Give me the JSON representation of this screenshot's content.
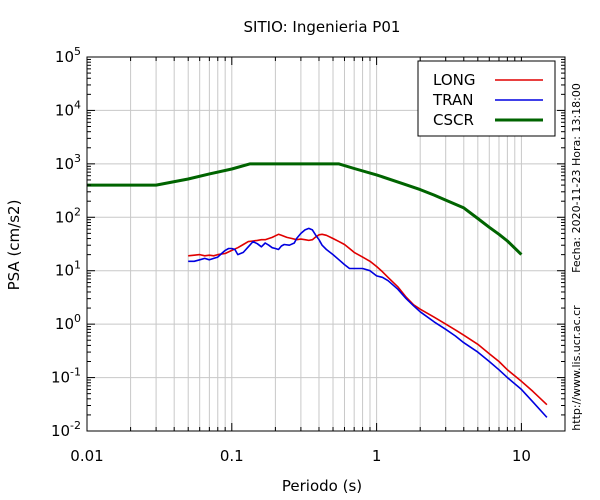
{
  "chart_data": {
    "type": "line",
    "title": "SITIO: Ingenieria P01",
    "xlabel": "Periodo (s)",
    "ylabel": "PSA (cm/s2)",
    "x_scale": "log",
    "y_scale": "log",
    "xlim": [
      0.01,
      20
    ],
    "ylim": [
      0.01,
      100000
    ],
    "grid": true,
    "legend_position": "top-right",
    "x_ticks": [
      {
        "value": 0.01,
        "label": "0.01"
      },
      {
        "value": 0.1,
        "label": "0.1"
      },
      {
        "value": 1,
        "label": "1"
      },
      {
        "value": 10,
        "label": "10"
      }
    ],
    "y_ticks": [
      {
        "value": 0.01,
        "base": "10",
        "exp": "-2"
      },
      {
        "value": 0.1,
        "base": "10",
        "exp": "-1"
      },
      {
        "value": 1,
        "base": "10",
        "exp": "0"
      },
      {
        "value": 10,
        "base": "10",
        "exp": "1"
      },
      {
        "value": 100,
        "base": "10",
        "exp": "2"
      },
      {
        "value": 1000,
        "base": "10",
        "exp": "3"
      },
      {
        "value": 10000,
        "base": "10",
        "exp": "4"
      },
      {
        "value": 100000,
        "base": "10",
        "exp": "5"
      }
    ],
    "side_text": {
      "date": "Fecha: 2020-11-23  Hora: 13:18:00",
      "url": "http://www.lis.ucr.ac.cr"
    },
    "series": [
      {
        "name": "LONG",
        "color": "#e00000",
        "points": [
          [
            0.05,
            19
          ],
          [
            0.055,
            19.5
          ],
          [
            0.06,
            20
          ],
          [
            0.065,
            19
          ],
          [
            0.07,
            19.5
          ],
          [
            0.075,
            19
          ],
          [
            0.08,
            20
          ],
          [
            0.09,
            21
          ],
          [
            0.1,
            24
          ],
          [
            0.11,
            27
          ],
          [
            0.12,
            31
          ],
          [
            0.13,
            35
          ],
          [
            0.14,
            36
          ],
          [
            0.15,
            37
          ],
          [
            0.16,
            38
          ],
          [
            0.17,
            38
          ],
          [
            0.18,
            40
          ],
          [
            0.19,
            42
          ],
          [
            0.2,
            45
          ],
          [
            0.21,
            48
          ],
          [
            0.22,
            46
          ],
          [
            0.24,
            42
          ],
          [
            0.26,
            40
          ],
          [
            0.28,
            38
          ],
          [
            0.3,
            39
          ],
          [
            0.32,
            38
          ],
          [
            0.34,
            37
          ],
          [
            0.36,
            38
          ],
          [
            0.38,
            43
          ],
          [
            0.4,
            47
          ],
          [
            0.42,
            48
          ],
          [
            0.45,
            46
          ],
          [
            0.5,
            40
          ],
          [
            0.55,
            35
          ],
          [
            0.6,
            31
          ],
          [
            0.65,
            26
          ],
          [
            0.7,
            22
          ],
          [
            0.8,
            18
          ],
          [
            0.9,
            15
          ],
          [
            1.0,
            12
          ],
          [
            1.1,
            9.5
          ],
          [
            1.2,
            7.5
          ],
          [
            1.4,
            5.0
          ],
          [
            1.6,
            3.2
          ],
          [
            1.8,
            2.3
          ],
          [
            2.0,
            1.9
          ],
          [
            2.5,
            1.35
          ],
          [
            3.0,
            1.0
          ],
          [
            3.5,
            0.78
          ],
          [
            4.0,
            0.62
          ],
          [
            5.0,
            0.42
          ],
          [
            6.0,
            0.28
          ],
          [
            7.0,
            0.2
          ],
          [
            8.0,
            0.14
          ],
          [
            10.0,
            0.085
          ],
          [
            12.0,
            0.055
          ],
          [
            15.0,
            0.031
          ]
        ]
      },
      {
        "name": "TRAN",
        "color": "#0000e0",
        "points": [
          [
            0.05,
            15
          ],
          [
            0.055,
            15
          ],
          [
            0.06,
            16
          ],
          [
            0.065,
            17
          ],
          [
            0.07,
            16
          ],
          [
            0.075,
            17
          ],
          [
            0.08,
            18
          ],
          [
            0.085,
            21
          ],
          [
            0.09,
            24
          ],
          [
            0.095,
            26
          ],
          [
            0.1,
            26
          ],
          [
            0.105,
            25
          ],
          [
            0.11,
            20
          ],
          [
            0.12,
            22
          ],
          [
            0.13,
            28
          ],
          [
            0.14,
            35
          ],
          [
            0.15,
            32
          ],
          [
            0.16,
            28
          ],
          [
            0.17,
            33
          ],
          [
            0.18,
            30
          ],
          [
            0.19,
            27
          ],
          [
            0.2,
            26
          ],
          [
            0.21,
            25
          ],
          [
            0.22,
            29
          ],
          [
            0.23,
            31
          ],
          [
            0.25,
            30
          ],
          [
            0.27,
            33
          ],
          [
            0.28,
            40
          ],
          [
            0.3,
            50
          ],
          [
            0.32,
            58
          ],
          [
            0.34,
            62
          ],
          [
            0.36,
            58
          ],
          [
            0.38,
            46
          ],
          [
            0.4,
            38
          ],
          [
            0.42,
            30
          ],
          [
            0.45,
            25
          ],
          [
            0.5,
            20
          ],
          [
            0.55,
            16
          ],
          [
            0.6,
            13
          ],
          [
            0.65,
            11
          ],
          [
            0.7,
            11
          ],
          [
            0.8,
            11
          ],
          [
            0.9,
            10
          ],
          [
            1.0,
            8
          ],
          [
            1.1,
            7.5
          ],
          [
            1.2,
            6.5
          ],
          [
            1.4,
            4.5
          ],
          [
            1.6,
            3.0
          ],
          [
            1.8,
            2.2
          ],
          [
            2.0,
            1.7
          ],
          [
            2.5,
            1.1
          ],
          [
            3.0,
            0.8
          ],
          [
            3.5,
            0.6
          ],
          [
            4.0,
            0.45
          ],
          [
            5.0,
            0.3
          ],
          [
            6.0,
            0.2
          ],
          [
            7.0,
            0.14
          ],
          [
            8.0,
            0.1
          ],
          [
            10.0,
            0.06
          ],
          [
            12.0,
            0.035
          ],
          [
            15.0,
            0.018
          ]
        ]
      },
      {
        "name": "CSCR",
        "color": "#006400",
        "points": [
          [
            0.01,
            400
          ],
          [
            0.03,
            400
          ],
          [
            0.05,
            520
          ],
          [
            0.07,
            650
          ],
          [
            0.1,
            800
          ],
          [
            0.133,
            1000
          ],
          [
            0.2,
            1000
          ],
          [
            0.3,
            1000
          ],
          [
            0.4,
            1000
          ],
          [
            0.55,
            1000
          ],
          [
            0.7,
            820
          ],
          [
            1.0,
            620
          ],
          [
            1.5,
            430
          ],
          [
            2.0,
            330
          ],
          [
            2.5,
            260
          ],
          [
            3.0,
            210
          ],
          [
            4.0,
            150
          ],
          [
            5.0,
            95
          ],
          [
            6.0,
            65
          ],
          [
            7.0,
            48
          ],
          [
            8.0,
            36
          ],
          [
            10.0,
            20
          ]
        ]
      }
    ]
  }
}
